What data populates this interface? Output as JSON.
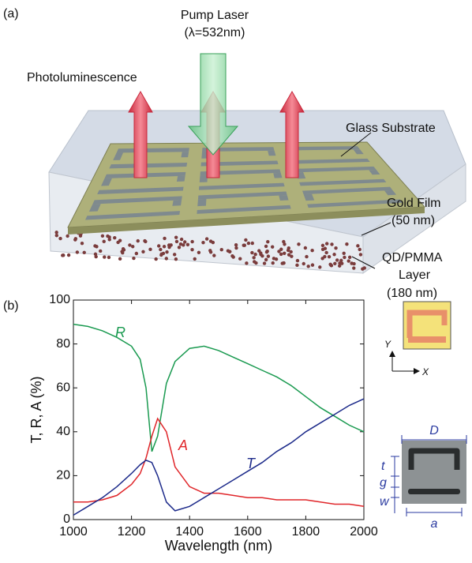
{
  "panel_a": {
    "label": "(a)",
    "pump": [
      "Pump Laser",
      "(λ=532nm)"
    ],
    "emission": "Photoluminescence",
    "glass": "Glass Substrate",
    "gold": [
      "Gold Film",
      "(50 nm)"
    ],
    "qd": [
      "QD/PMMA",
      "Layer",
      "(180 nm)"
    ]
  },
  "panel_b_label": "(b)",
  "inset": {
    "y_axis": "Y",
    "x_axis": "X",
    "dims": [
      "D",
      "t",
      "g",
      "w",
      "a"
    ]
  },
  "chart_data": {
    "type": "line",
    "xlabel": "Wavelength (nm)",
    "ylabel": "T, R, A (%)",
    "x": [
      1000,
      1050,
      1100,
      1150,
      1200,
      1230,
      1250,
      1270,
      1290,
      1320,
      1350,
      1400,
      1450,
      1500,
      1550,
      1600,
      1650,
      1700,
      1750,
      1800,
      1850,
      1900,
      1950,
      2000
    ],
    "series": [
      {
        "name": "R",
        "color": "#1a9a50",
        "values": [
          89,
          88,
          86,
          83,
          79,
          73,
          60,
          31,
          38,
          62,
          72,
          78,
          79,
          77,
          74,
          71,
          68,
          65,
          61,
          56,
          51,
          47,
          43,
          40
        ]
      },
      {
        "name": "A",
        "color": "#e0262a",
        "values": [
          8,
          8,
          9,
          11,
          16,
          21,
          28,
          38,
          46,
          40,
          24,
          15,
          12,
          12,
          11,
          10,
          10,
          9,
          9,
          9,
          8,
          7,
          7,
          6
        ]
      },
      {
        "name": "T",
        "color": "#1c2a8a",
        "values": [
          2,
          6,
          10,
          15,
          21,
          25,
          27,
          26,
          20,
          8,
          4,
          6,
          10,
          14,
          18,
          22,
          26,
          31,
          35,
          40,
          44,
          48,
          52,
          55
        ]
      }
    ],
    "xlim": [
      1000,
      2000
    ],
    "xticks": [
      1000,
      1200,
      1400,
      1600,
      1800,
      2000
    ],
    "ylim": [
      0,
      100
    ],
    "yticks": [
      0,
      20,
      40,
      60,
      80,
      100
    ]
  }
}
